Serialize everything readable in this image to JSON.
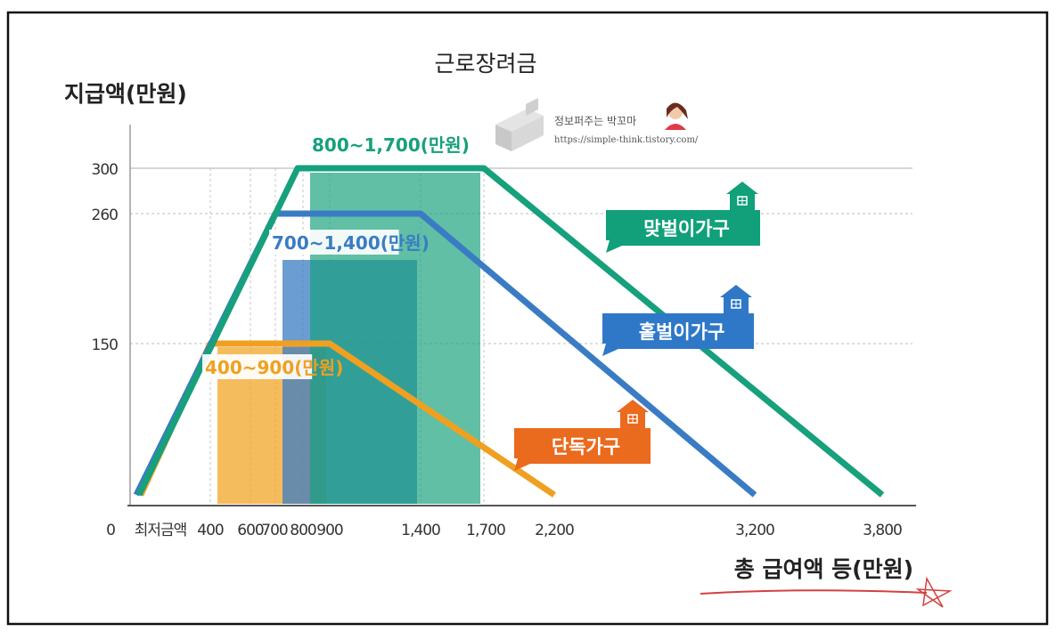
{
  "chart_data": {
    "type": "line",
    "title": "근로장려금",
    "ylabel": "지급액(만원)",
    "xlabel": "총 급여액 등(만원)",
    "x_tick_labels": [
      "0",
      "최저금액",
      "400",
      "600",
      "700",
      "800",
      "900",
      "1,400",
      "1,700",
      "2,200",
      "3,200",
      "3,800"
    ],
    "y_tick_labels": [
      "300",
      "260",
      "150"
    ],
    "y_ticks": [
      300,
      260,
      150
    ],
    "series": [
      {
        "name": "단독가구",
        "color": "#f0a020",
        "max": 150,
        "flat_range": [
          400,
          900
        ],
        "end": 2200,
        "range_label": "400~900(만원)"
      },
      {
        "name": "홑벌이가구",
        "color": "#3a7cc4",
        "max": 260,
        "flat_range": [
          700,
          1400
        ],
        "end": 3200,
        "range_label": "700~1,400(만원)"
      },
      {
        "name": "맞벌이가구",
        "color": "#16a07c",
        "max": 300,
        "flat_range": [
          800,
          1700
        ],
        "end": 3800,
        "range_label": "800~1,700(만원)"
      }
    ],
    "grid": true,
    "legend": "tags next to each line"
  },
  "watermark": {
    "name": "정보퍼주는 박꼬마",
    "url": "https://simple-think.tistory.com/"
  }
}
